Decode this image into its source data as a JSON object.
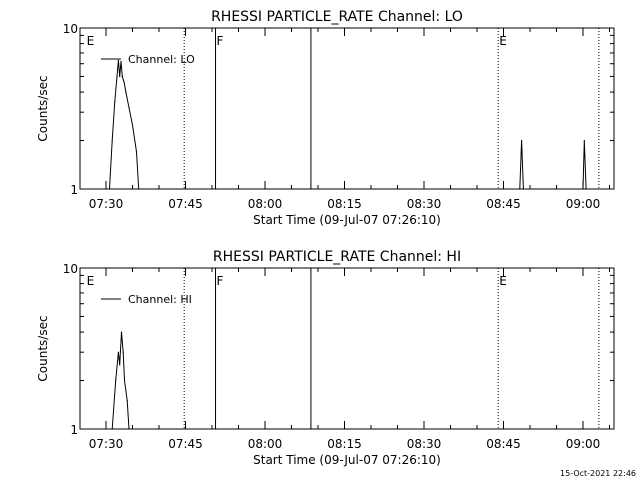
{
  "colors": {
    "background": "#ffffff",
    "foreground": "#000000"
  },
  "footer_timestamp": "15-Oct-2021 22:46",
  "chart_data": [
    {
      "type": "line",
      "title": "RHESSI PARTICLE_RATE Channel: LO",
      "xlabel": "Start Time (09-Jul-07 07:26:10)",
      "ylabel": "Counts/sec",
      "yscale": "log",
      "ylim": [
        1,
        10
      ],
      "y_tick_labels": [
        "10",
        "1"
      ],
      "x_tick_labels": [
        "07:30",
        "07:45",
        "08:00",
        "08:15",
        "08:30",
        "08:45",
        "09:00"
      ],
      "legend_position": "top-left",
      "series": [
        {
          "name": "Channel: LO",
          "points": [
            [
              "07:30:40",
              1.0
            ],
            [
              "07:31:10",
              2.0
            ],
            [
              "07:31:40",
              3.5
            ],
            [
              "07:32:05",
              5.0
            ],
            [
              "07:32:20",
              6.3
            ],
            [
              "07:32:35",
              5.0
            ],
            [
              "07:32:50",
              6.2
            ],
            [
              "07:33:05",
              5.0
            ],
            [
              "07:33:25",
              4.6
            ],
            [
              "07:33:45",
              4.0
            ],
            [
              "07:34:20",
              3.2
            ],
            [
              "07:35:00",
              2.5
            ],
            [
              "07:35:45",
              1.7
            ],
            [
              "07:36:10",
              1.0
            ],
            [
              "08:48:05",
              1.0
            ],
            [
              "08:48:25",
              2.0
            ],
            [
              "08:48:45",
              1.0
            ],
            [
              "09:00:00",
              1.0
            ],
            [
              "09:00:15",
              2.0
            ],
            [
              "09:00:35",
              1.0
            ]
          ]
        }
      ],
      "annotations": [
        {
          "text": "E",
          "time": "07:26:10",
          "line": "dotted",
          "line_time": "07:44:45"
        },
        {
          "text": "F",
          "time": "07:50:40",
          "line": "solid",
          "line_time": "07:50:40"
        },
        {
          "text": "",
          "line": "solid",
          "line_time": "08:08:40"
        },
        {
          "text": "E",
          "time": "08:44:00",
          "line": "dotted",
          "line_time": "08:44:00"
        },
        {
          "text": "",
          "line": "dotted",
          "line_time": "09:03:00"
        }
      ]
    },
    {
      "type": "line",
      "title": "RHESSI PARTICLE_RATE Channel: HI",
      "xlabel": "Start Time (09-Jul-07 07:26:10)",
      "ylabel": "Counts/sec",
      "yscale": "log",
      "ylim": [
        1,
        10
      ],
      "y_tick_labels": [
        "10",
        "1"
      ],
      "x_tick_labels": [
        "07:30",
        "07:45",
        "08:00",
        "08:15",
        "08:30",
        "08:45",
        "09:00"
      ],
      "legend_position": "top-left",
      "series": [
        {
          "name": "Channel: HI",
          "points": [
            [
              "07:31:10",
              1.0
            ],
            [
              "07:31:50",
              2.0
            ],
            [
              "07:32:20",
              3.0
            ],
            [
              "07:32:35",
              2.5
            ],
            [
              "07:32:55",
              4.0
            ],
            [
              "07:33:15",
              3.0
            ],
            [
              "07:33:30",
              2.0
            ],
            [
              "07:34:00",
              1.5
            ],
            [
              "07:34:20",
              1.0
            ]
          ]
        }
      ],
      "annotations": [
        {
          "text": "E",
          "time": "07:26:10",
          "line": "dotted",
          "line_time": "07:44:45"
        },
        {
          "text": "F",
          "time": "07:50:40",
          "line": "solid",
          "line_time": "07:50:40"
        },
        {
          "text": "",
          "line": "solid",
          "line_time": "08:08:40"
        },
        {
          "text": "E",
          "time": "08:44:00",
          "line": "dotted",
          "line_time": "08:44:00"
        },
        {
          "text": "",
          "line": "dotted",
          "line_time": "09:03:00"
        }
      ]
    }
  ]
}
